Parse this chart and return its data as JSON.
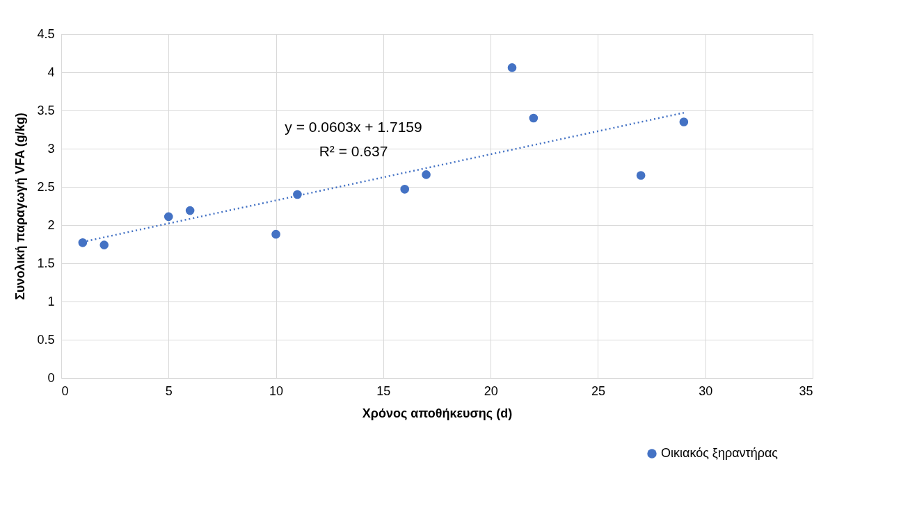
{
  "chart_data": {
    "type": "scatter",
    "xlabel": "Χρόνος αποθήκευσης (d)",
    "ylabel": "Συνολική παραγωγή VFA (g/kg)",
    "annotations": [
      "y = 0.0603x + 1.7159",
      "R² = 0.637"
    ],
    "xlim": [
      0,
      35
    ],
    "xticks": [
      0,
      5,
      10,
      15,
      20,
      25,
      30,
      35
    ],
    "ylim": [
      0,
      4.5
    ],
    "yticks": [
      0,
      0.5,
      1,
      1.5,
      2,
      2.5,
      3,
      3.5,
      4,
      4.5
    ],
    "grid": true,
    "legend": "bottom right",
    "marker": "circle",
    "series": [
      {
        "name": "Οικιακός ξηραντήρας",
        "color": "#4472c4",
        "x": [
          1,
          2,
          5,
          6,
          10,
          11,
          16,
          17,
          21,
          22,
          27,
          29
        ],
        "values": [
          1.77,
          1.74,
          2.11,
          2.19,
          1.88,
          2.4,
          2.47,
          2.66,
          4.06,
          3.4,
          2.65,
          3.35
        ]
      },
      {
        "type": "line",
        "color": "#4472c4",
        "line_style": "dotted",
        "marker": "none",
        "x": [
          1,
          29
        ],
        "values": [
          1.78,
          3.47
        ]
      }
    ]
  }
}
